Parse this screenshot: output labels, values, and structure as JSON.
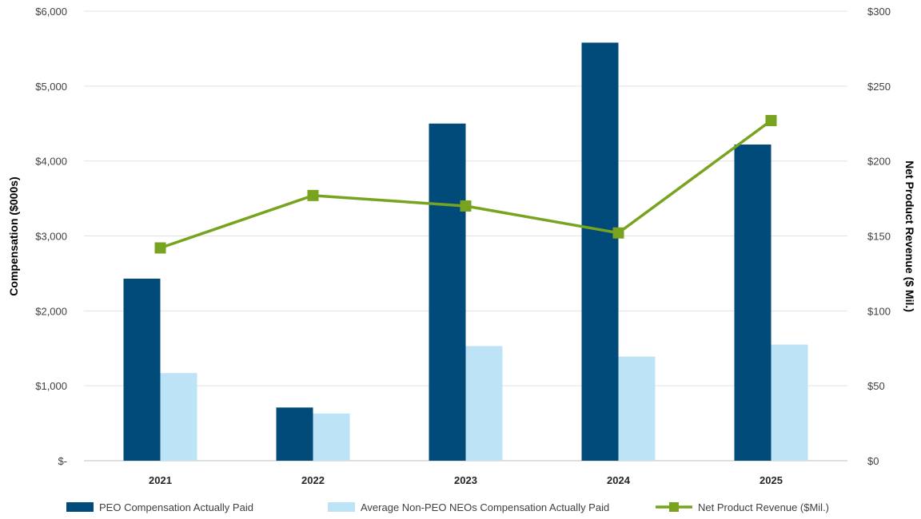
{
  "chart_data": {
    "type": "bar",
    "categories": [
      "2021",
      "2022",
      "2023",
      "2024",
      "2025"
    ],
    "series": [
      {
        "name": "PEO Compensation Actually Paid",
        "type": "bar",
        "axis": "left",
        "color": "#004b7a",
        "values": [
          2430,
          710,
          4500,
          5580,
          4220
        ]
      },
      {
        "name": "Average Non-PEO NEOs Compensation Actually Paid",
        "type": "bar",
        "axis": "left",
        "color": "#bde3f7",
        "values": [
          1170,
          630,
          1530,
          1390,
          1550
        ]
      },
      {
        "name": "Net Product Revenue ($Mil.)",
        "type": "line",
        "axis": "right",
        "color": "#77a31e",
        "values": [
          142,
          177,
          170,
          152,
          227
        ]
      }
    ],
    "left_axis": {
      "label": "Compensation ($000s)",
      "ylim": [
        0,
        6000
      ],
      "ticks": [
        0,
        1000,
        2000,
        3000,
        4000,
        5000,
        6000
      ],
      "tick_labels": [
        "$-",
        "$1,000",
        "$2,000",
        "$3,000",
        "$4,000",
        "$5,000",
        "$6,000"
      ]
    },
    "right_axis": {
      "label": "Net Product Revenue ($ Mil.)",
      "ylim": [
        0,
        300
      ],
      "ticks": [
        0,
        50,
        100,
        150,
        200,
        250,
        300
      ],
      "tick_labels": [
        "$0",
        "$50",
        "$100",
        "$150",
        "$200",
        "$250",
        "$300"
      ]
    },
    "grid": true,
    "legend": "bottom"
  }
}
